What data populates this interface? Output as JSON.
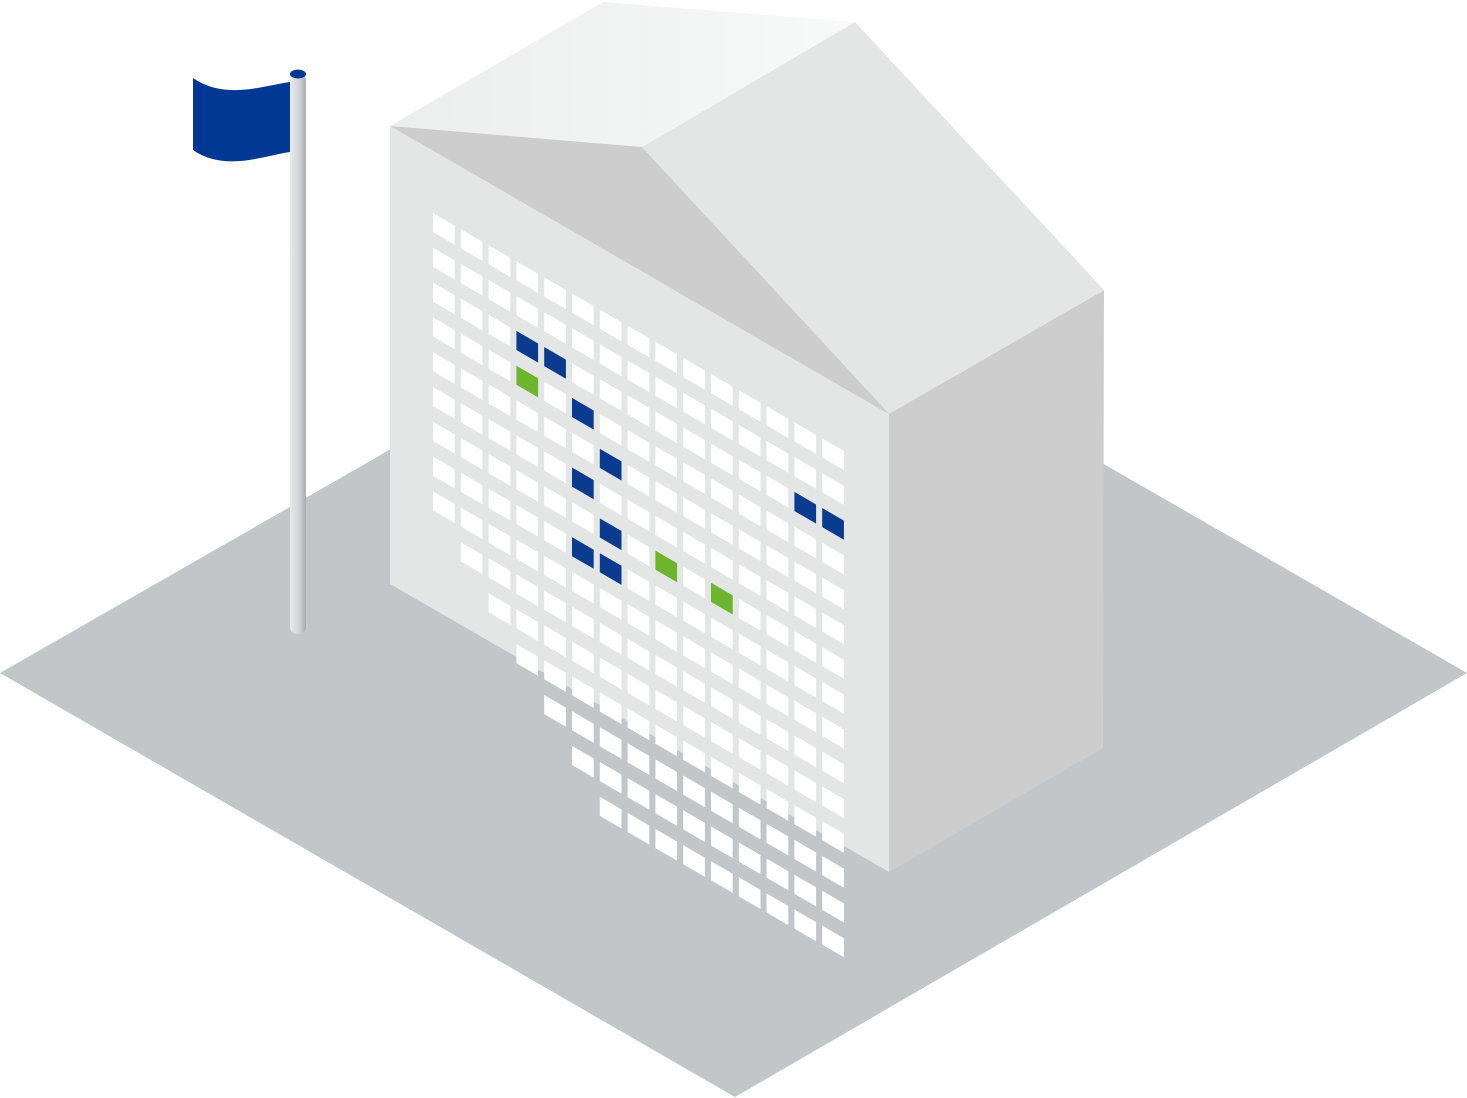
{
  "illustration": {
    "subject": "building-with-flag",
    "colors": {
      "ground": "#C2C6C8",
      "roof_front_slope": "#CDCDCD",
      "roof_back_slope": "#E4E6E5",
      "roof_top": "#F4F5F5",
      "front_wall": "#E4E6E5",
      "side_wall": "#CDCDCD",
      "window_default": "#FFFFFF",
      "window_blue": "#0B3B8F",
      "window_green": "#6CB52D",
      "flag": "#003893",
      "pole_light": "#E8E9EA",
      "pole_dark": "#A9ACAF"
    },
    "window_grid": {
      "rows": 15,
      "cols": 15,
      "highlighted": [
        {
          "row": 2,
          "col": 3,
          "color": "blue"
        },
        {
          "row": 2,
          "col": 4,
          "color": "blue"
        },
        {
          "row": 3,
          "col": 3,
          "color": "green"
        },
        {
          "row": 3,
          "col": 5,
          "color": "blue"
        },
        {
          "row": 4,
          "col": 6,
          "color": "blue"
        },
        {
          "row": 5,
          "col": 5,
          "color": "blue"
        },
        {
          "row": 6,
          "col": 6,
          "color": "blue"
        },
        {
          "row": 7,
          "col": 5,
          "color": "blue"
        },
        {
          "row": 6,
          "col": 8,
          "color": "green"
        },
        {
          "row": 7,
          "col": 6,
          "color": "blue"
        },
        {
          "row": 6,
          "col": 10,
          "color": "green"
        },
        {
          "row": 2,
          "col": 13,
          "color": "blue"
        },
        {
          "row": 2,
          "col": 14,
          "color": "blue"
        }
      ]
    }
  }
}
